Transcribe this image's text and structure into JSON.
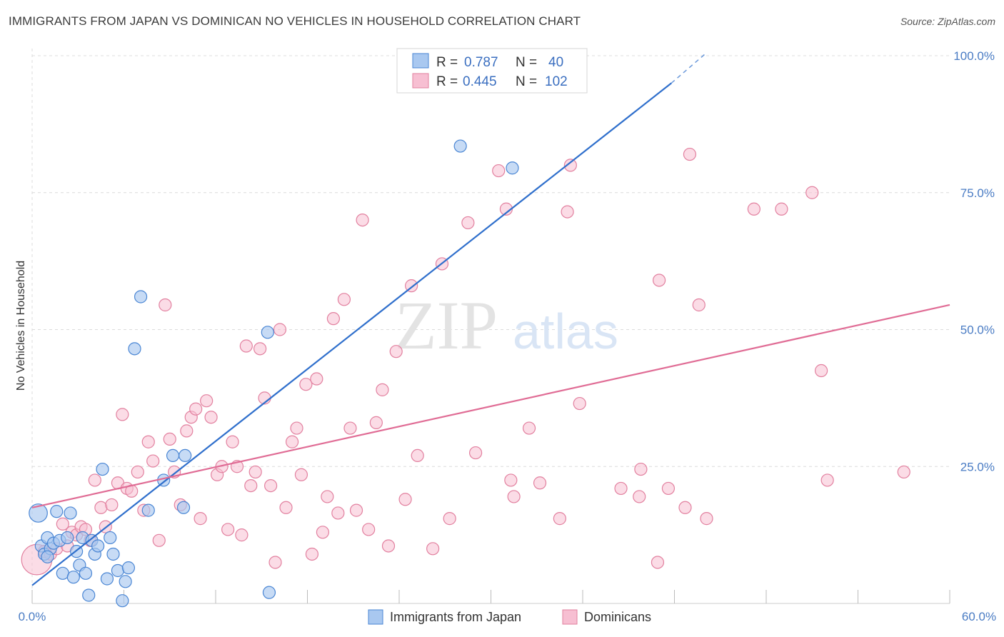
{
  "title": "IMMIGRANTS FROM JAPAN VS DOMINICAN NO VEHICLES IN HOUSEHOLD CORRELATION CHART",
  "source": "Source: ZipAtlas.com",
  "watermark": {
    "zip": "ZIP",
    "atlas": "atlas"
  },
  "colors": {
    "japan_fill": "#a9c8f0",
    "japan_stroke": "#4a86d4",
    "japan_line": "#2f6fcc",
    "dominican_fill": "#f7bfd2",
    "dominican_stroke": "#e2809f",
    "dominican_line": "#e06c95",
    "grid": "#dcdcdc",
    "tick_text": "#4a7cc4"
  },
  "legend": {
    "r_label": "R =",
    "n_label": "N =",
    "rows": [
      {
        "r": "0.787",
        "n": "40"
      },
      {
        "r": "0.445",
        "n": "102"
      }
    ]
  },
  "bottom_legend": [
    "Immigrants from Japan",
    "Dominicans"
  ],
  "chart_data": {
    "type": "scatter",
    "title": "IMMIGRANTS FROM JAPAN VS DOMINICAN NO VEHICLES IN HOUSEHOLD CORRELATION CHART",
    "xlabel": "",
    "ylabel": "No Vehicles in Household",
    "xlim": [
      0,
      60
    ],
    "ylim": [
      0,
      105
    ],
    "x_tick_labels": [
      "0.0%",
      "60.0%"
    ],
    "y_ticks": [
      25,
      50,
      75,
      100
    ],
    "y_tick_labels": [
      "25.0%",
      "50.0%",
      "75.0%",
      "100.0%"
    ],
    "grid": true,
    "legend_position": "top-center",
    "series": [
      {
        "name": "Immigrants from Japan",
        "r": 0.787,
        "n": 40,
        "trend": {
          "x0": 0,
          "y0": 3.3,
          "x1": 41.8,
          "y1": 95.0,
          "dash_to_x": 44.0,
          "dash_to_y": 100.3
        },
        "points": [
          [
            0.4,
            16.5,
            1.5
          ],
          [
            0.6,
            10.5,
            1
          ],
          [
            0.8,
            9.0,
            1
          ],
          [
            1.0,
            12.0,
            1
          ],
          [
            1.2,
            10.0,
            1
          ],
          [
            1.4,
            11.0,
            1
          ],
          [
            1.6,
            16.8,
            1
          ],
          [
            1.8,
            11.5,
            1
          ],
          [
            2.0,
            5.5,
            1
          ],
          [
            2.3,
            12.0,
            1
          ],
          [
            2.5,
            16.5,
            1
          ],
          [
            2.7,
            4.8,
            1
          ],
          [
            2.9,
            9.5,
            1
          ],
          [
            3.1,
            7.0,
            1
          ],
          [
            3.3,
            12.0,
            1
          ],
          [
            3.5,
            5.5,
            1
          ],
          [
            3.7,
            1.5,
            1
          ],
          [
            3.9,
            11.5,
            1
          ],
          [
            4.1,
            9.0,
            1
          ],
          [
            4.3,
            10.5,
            1
          ],
          [
            4.6,
            24.5,
            1
          ],
          [
            4.9,
            4.5,
            1
          ],
          [
            5.1,
            12.0,
            1
          ],
          [
            5.3,
            9.0,
            1
          ],
          [
            5.6,
            6.0,
            1
          ],
          [
            5.9,
            0.5,
            1
          ],
          [
            6.1,
            4.0,
            1
          ],
          [
            6.3,
            6.5,
            1
          ],
          [
            6.7,
            46.5,
            1
          ],
          [
            7.1,
            56.0,
            1
          ],
          [
            7.6,
            17.0,
            1
          ],
          [
            8.6,
            22.5,
            1
          ],
          [
            9.2,
            27.0,
            1
          ],
          [
            9.9,
            17.5,
            1
          ],
          [
            10.0,
            27.0,
            1
          ],
          [
            15.4,
            49.5,
            1
          ],
          [
            15.5,
            2.0,
            1
          ],
          [
            28.0,
            83.5,
            1
          ],
          [
            31.4,
            79.5,
            1
          ],
          [
            1.0,
            8.5,
            1
          ]
        ]
      },
      {
        "name": "Dominicans",
        "r": 0.445,
        "n": 102,
        "trend": {
          "x0": 0,
          "y0": 17.5,
          "x1": 60,
          "y1": 54.5
        },
        "points": [
          [
            0.3,
            8.0,
            2.5
          ],
          [
            0.8,
            9.5,
            1
          ],
          [
            1.2,
            9.0,
            1
          ],
          [
            1.6,
            10.0,
            1
          ],
          [
            2.0,
            14.5,
            1
          ],
          [
            2.3,
            10.5,
            1
          ],
          [
            2.6,
            13.0,
            1
          ],
          [
            2.9,
            12.5,
            1
          ],
          [
            3.2,
            14.0,
            1
          ],
          [
            3.5,
            13.5,
            1
          ],
          [
            3.8,
            11.5,
            1
          ],
          [
            4.1,
            22.5,
            1
          ],
          [
            4.5,
            17.5,
            1
          ],
          [
            4.8,
            14.0,
            1
          ],
          [
            5.2,
            18.0,
            1
          ],
          [
            5.6,
            22.0,
            1
          ],
          [
            5.9,
            34.5,
            1
          ],
          [
            6.2,
            21.0,
            1
          ],
          [
            6.5,
            20.5,
            1
          ],
          [
            6.9,
            24.0,
            1
          ],
          [
            7.3,
            17.0,
            1
          ],
          [
            7.6,
            29.5,
            1
          ],
          [
            7.9,
            26.0,
            1
          ],
          [
            8.3,
            11.5,
            1
          ],
          [
            8.7,
            54.5,
            1
          ],
          [
            9.0,
            30.0,
            1
          ],
          [
            9.3,
            24.0,
            1
          ],
          [
            9.7,
            18.0,
            1
          ],
          [
            10.1,
            31.5,
            1
          ],
          [
            10.4,
            34.0,
            1
          ],
          [
            10.7,
            35.5,
            1
          ],
          [
            11.0,
            15.5,
            1
          ],
          [
            11.4,
            37.0,
            1
          ],
          [
            11.7,
            34.0,
            1
          ],
          [
            12.1,
            23.5,
            1
          ],
          [
            12.4,
            25.0,
            1
          ],
          [
            12.8,
            13.5,
            1
          ],
          [
            13.1,
            29.5,
            1
          ],
          [
            13.4,
            25.0,
            1
          ],
          [
            13.7,
            12.5,
            1
          ],
          [
            14.0,
            47.0,
            1
          ],
          [
            14.3,
            21.5,
            1
          ],
          [
            14.6,
            24.0,
            1
          ],
          [
            14.9,
            46.5,
            1
          ],
          [
            15.2,
            37.5,
            1
          ],
          [
            15.6,
            21.5,
            1
          ],
          [
            15.9,
            7.5,
            1
          ],
          [
            16.2,
            50.0,
            1
          ],
          [
            16.6,
            17.5,
            1
          ],
          [
            17.0,
            29.5,
            1
          ],
          [
            17.3,
            32.0,
            1
          ],
          [
            17.6,
            23.5,
            1
          ],
          [
            17.9,
            40.0,
            1
          ],
          [
            18.3,
            9.0,
            1
          ],
          [
            18.6,
            41.0,
            1
          ],
          [
            19.0,
            13.0,
            1
          ],
          [
            19.3,
            19.5,
            1
          ],
          [
            19.7,
            52.0,
            1
          ],
          [
            20.0,
            16.5,
            1
          ],
          [
            20.4,
            55.5,
            1
          ],
          [
            20.8,
            32.0,
            1
          ],
          [
            21.2,
            17.0,
            1
          ],
          [
            21.6,
            70.0,
            1
          ],
          [
            22.0,
            13.5,
            1
          ],
          [
            22.5,
            33.0,
            1
          ],
          [
            22.9,
            39.0,
            1
          ],
          [
            23.3,
            10.5,
            1
          ],
          [
            23.8,
            46.0,
            1
          ],
          [
            24.4,
            19.0,
            1
          ],
          [
            24.8,
            58.0,
            1
          ],
          [
            25.2,
            27.0,
            1
          ],
          [
            26.2,
            10.0,
            1
          ],
          [
            26.8,
            62.0,
            1
          ],
          [
            27.3,
            15.5,
            1
          ],
          [
            28.5,
            69.5,
            1
          ],
          [
            29.0,
            27.5,
            1
          ],
          [
            30.5,
            79.0,
            1
          ],
          [
            31.0,
            72.0,
            1
          ],
          [
            31.3,
            22.5,
            1
          ],
          [
            31.5,
            19.5,
            1
          ],
          [
            32.5,
            32.0,
            1
          ],
          [
            33.2,
            22.0,
            1
          ],
          [
            34.5,
            15.5,
            1
          ],
          [
            35.0,
            71.5,
            1
          ],
          [
            35.2,
            80.0,
            1
          ],
          [
            35.8,
            36.5,
            1
          ],
          [
            38.5,
            21.0,
            1
          ],
          [
            39.7,
            19.5,
            1
          ],
          [
            39.8,
            24.5,
            1
          ],
          [
            40.9,
            7.5,
            1
          ],
          [
            41.0,
            59.0,
            1
          ],
          [
            41.6,
            21.0,
            1
          ],
          [
            42.7,
            17.5,
            1
          ],
          [
            43.0,
            82.0,
            1
          ],
          [
            43.6,
            54.5,
            1
          ],
          [
            44.1,
            15.5,
            1
          ],
          [
            47.2,
            72.0,
            1
          ],
          [
            49.0,
            72.0,
            1
          ],
          [
            51.0,
            75.0,
            1
          ],
          [
            51.6,
            42.5,
            1
          ],
          [
            52.0,
            22.5,
            1
          ],
          [
            57.0,
            24.0,
            1
          ]
        ]
      }
    ]
  }
}
